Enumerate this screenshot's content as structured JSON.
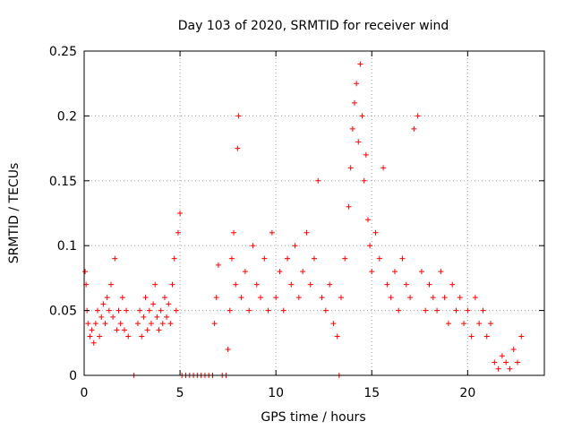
{
  "chart_data": {
    "type": "scatter",
    "title": "Day 103 of 2020, SRMTID for receiver wind",
    "xlabel": "GPS time / hours",
    "ylabel": "SRMTID / TECUs",
    "xlim": [
      0,
      24
    ],
    "ylim": [
      0,
      0.25
    ],
    "x_ticks": [
      0,
      5,
      10,
      15,
      20
    ],
    "x_tick_labels": [
      "0",
      "5",
      "10",
      "15",
      "20"
    ],
    "y_ticks": [
      0,
      0.05,
      0.1,
      0.15,
      0.2,
      0.25
    ],
    "y_tick_labels": [
      "0",
      "0.05",
      "0.1",
      "0.15",
      "0.2",
      "0.25"
    ],
    "grid": true,
    "marker": "+",
    "color": "#ff0000",
    "series": [
      {
        "name": "SRMTID",
        "points": [
          [
            0.05,
            0.08
          ],
          [
            0.1,
            0.07
          ],
          [
            0.15,
            0.05
          ],
          [
            0.2,
            0.04
          ],
          [
            0.3,
            0.03
          ],
          [
            0.4,
            0.035
          ],
          [
            0.5,
            0.025
          ],
          [
            0.6,
            0.04
          ],
          [
            0.7,
            0.05
          ],
          [
            0.8,
            0.03
          ],
          [
            0.9,
            0.045
          ],
          [
            1.0,
            0.055
          ],
          [
            1.1,
            0.04
          ],
          [
            1.2,
            0.06
          ],
          [
            1.3,
            0.05
          ],
          [
            1.4,
            0.07
          ],
          [
            1.5,
            0.045
          ],
          [
            1.6,
            0.09
          ],
          [
            1.7,
            0.035
          ],
          [
            1.8,
            0.05
          ],
          [
            1.9,
            0.04
          ],
          [
            2.0,
            0.06
          ],
          [
            2.1,
            0.035
          ],
          [
            2.2,
            0.05
          ],
          [
            2.3,
            0.03
          ],
          [
            2.6,
            0.0
          ],
          [
            2.8,
            0.04
          ],
          [
            2.9,
            0.05
          ],
          [
            3.0,
            0.03
          ],
          [
            3.1,
            0.045
          ],
          [
            3.2,
            0.06
          ],
          [
            3.3,
            0.035
          ],
          [
            3.4,
            0.05
          ],
          [
            3.5,
            0.04
          ],
          [
            3.6,
            0.055
          ],
          [
            3.7,
            0.07
          ],
          [
            3.8,
            0.045
          ],
          [
            3.9,
            0.035
          ],
          [
            4.0,
            0.05
          ],
          [
            4.1,
            0.04
          ],
          [
            4.2,
            0.06
          ],
          [
            4.3,
            0.045
          ],
          [
            4.4,
            0.055
          ],
          [
            4.5,
            0.04
          ],
          [
            4.6,
            0.07
          ],
          [
            4.7,
            0.09
          ],
          [
            4.8,
            0.05
          ],
          [
            4.9,
            0.11
          ],
          [
            5.0,
            0.125
          ],
          [
            5.1,
            0.0
          ],
          [
            5.3,
            0.0
          ],
          [
            5.5,
            0.0
          ],
          [
            5.7,
            0.0
          ],
          [
            5.9,
            0.0
          ],
          [
            6.1,
            0.0
          ],
          [
            6.3,
            0.0
          ],
          [
            6.5,
            0.0
          ],
          [
            6.7,
            0.0
          ],
          [
            6.8,
            0.04
          ],
          [
            6.9,
            0.06
          ],
          [
            7.0,
            0.085
          ],
          [
            7.2,
            0.0
          ],
          [
            7.4,
            0.0
          ],
          [
            7.5,
            0.02
          ],
          [
            7.6,
            0.05
          ],
          [
            7.7,
            0.09
          ],
          [
            7.8,
            0.11
          ],
          [
            7.9,
            0.07
          ],
          [
            8.0,
            0.175
          ],
          [
            8.05,
            0.2
          ],
          [
            8.2,
            0.06
          ],
          [
            8.4,
            0.08
          ],
          [
            8.6,
            0.05
          ],
          [
            8.8,
            0.1
          ],
          [
            9.0,
            0.07
          ],
          [
            9.2,
            0.06
          ],
          [
            9.4,
            0.09
          ],
          [
            9.6,
            0.05
          ],
          [
            9.8,
            0.11
          ],
          [
            10.0,
            0.06
          ],
          [
            10.2,
            0.08
          ],
          [
            10.4,
            0.05
          ],
          [
            10.6,
            0.09
          ],
          [
            10.8,
            0.07
          ],
          [
            11.0,
            0.1
          ],
          [
            11.2,
            0.06
          ],
          [
            11.4,
            0.08
          ],
          [
            11.6,
            0.11
          ],
          [
            11.8,
            0.07
          ],
          [
            12.0,
            0.09
          ],
          [
            12.2,
            0.15
          ],
          [
            12.4,
            0.06
          ],
          [
            12.6,
            0.05
          ],
          [
            12.8,
            0.07
          ],
          [
            13.0,
            0.04
          ],
          [
            13.2,
            0.03
          ],
          [
            13.3,
            0.0
          ],
          [
            13.4,
            0.06
          ],
          [
            13.6,
            0.09
          ],
          [
            13.8,
            0.13
          ],
          [
            13.9,
            0.16
          ],
          [
            14.0,
            0.19
          ],
          [
            14.1,
            0.21
          ],
          [
            14.2,
            0.225
          ],
          [
            14.3,
            0.18
          ],
          [
            14.4,
            0.24
          ],
          [
            14.5,
            0.2
          ],
          [
            14.6,
            0.15
          ],
          [
            14.7,
            0.17
          ],
          [
            14.8,
            0.12
          ],
          [
            14.9,
            0.1
          ],
          [
            15.0,
            0.08
          ],
          [
            15.2,
            0.11
          ],
          [
            15.4,
            0.09
          ],
          [
            15.6,
            0.16
          ],
          [
            15.8,
            0.07
          ],
          [
            16.0,
            0.06
          ],
          [
            16.2,
            0.08
          ],
          [
            16.4,
            0.05
          ],
          [
            16.6,
            0.09
          ],
          [
            16.8,
            0.07
          ],
          [
            17.0,
            0.06
          ],
          [
            17.2,
            0.19
          ],
          [
            17.4,
            0.2
          ],
          [
            17.6,
            0.08
          ],
          [
            17.8,
            0.05
          ],
          [
            18.0,
            0.07
          ],
          [
            18.2,
            0.06
          ],
          [
            18.4,
            0.05
          ],
          [
            18.6,
            0.08
          ],
          [
            18.8,
            0.06
          ],
          [
            19.0,
            0.04
          ],
          [
            19.2,
            0.07
          ],
          [
            19.4,
            0.05
          ],
          [
            19.6,
            0.06
          ],
          [
            19.8,
            0.04
          ],
          [
            20.0,
            0.05
          ],
          [
            20.2,
            0.03
          ],
          [
            20.4,
            0.06
          ],
          [
            20.6,
            0.04
          ],
          [
            20.8,
            0.05
          ],
          [
            21.0,
            0.03
          ],
          [
            21.2,
            0.04
          ],
          [
            21.4,
            0.01
          ],
          [
            21.6,
            0.005
          ],
          [
            21.8,
            0.015
          ],
          [
            22.0,
            0.01
          ],
          [
            22.2,
            0.005
          ],
          [
            22.4,
            0.02
          ],
          [
            22.6,
            0.01
          ],
          [
            22.8,
            0.03
          ]
        ]
      }
    ]
  }
}
